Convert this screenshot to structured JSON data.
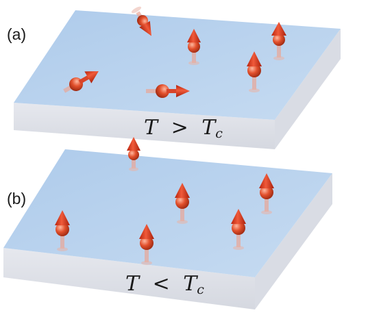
{
  "panels": [
    {
      "label": "(a)",
      "temp_var": "T",
      "temp_op": ">",
      "temp_sub_var": "T",
      "temp_sub": "c",
      "spins": [
        {
          "dir": "down-right"
        },
        {
          "dir": "up"
        },
        {
          "dir": "up"
        },
        {
          "dir": "up"
        },
        {
          "dir": "up-right"
        },
        {
          "dir": "right"
        }
      ]
    },
    {
      "label": "(b)",
      "temp_var": "T",
      "temp_op": "<",
      "temp_sub_var": "T",
      "temp_sub": "c",
      "spins": [
        {
          "dir": "up"
        },
        {
          "dir": "up"
        },
        {
          "dir": "up"
        },
        {
          "dir": "up"
        },
        {
          "dir": "up"
        },
        {
          "dir": "up"
        },
        {
          "dir": "up"
        }
      ]
    }
  ],
  "colors": {
    "slab_top": "#b9d3ee",
    "slab_side": "#dfe3ea",
    "arrow": "#e23a1c",
    "ball": "#d8502e"
  }
}
